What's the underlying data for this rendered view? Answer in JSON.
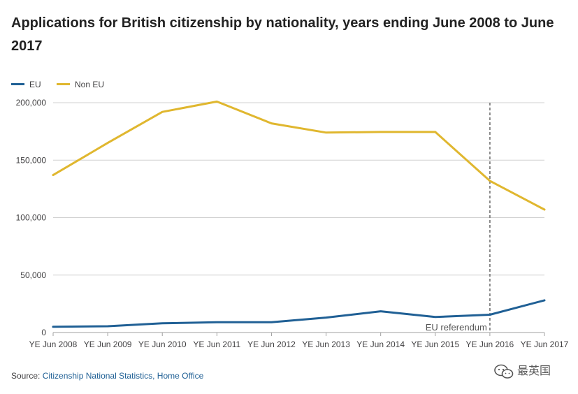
{
  "title": "Applications for British citizenship by nationality, years ending June 2008 to June 2017",
  "colors": {
    "eu": "#206095",
    "non_eu": "#e0b72f",
    "grid": "#d0d0d0",
    "axis_text": "#414042",
    "refline": "#888888"
  },
  "chart_data": {
    "type": "line",
    "title": "Applications for British citizenship by nationality, years ending June 2008 to June 2017",
    "xlabel": "",
    "ylabel": "",
    "categories": [
      "YE Jun 2008",
      "YE Jun 2009",
      "YE Jun 2010",
      "YE Jun 2011",
      "YE Jun 2012",
      "YE Jun 2013",
      "YE Jun 2014",
      "YE Jun 2015",
      "YE Jun 2016",
      "YE Jun 2017"
    ],
    "series": [
      {
        "name": "EU",
        "color": "#206095",
        "values": [
          5000,
          5500,
          8000,
          9000,
          9000,
          13000,
          18500,
          13500,
          15500,
          28000
        ]
      },
      {
        "name": "Non EU",
        "color": "#e0b72f",
        "values": [
          137000,
          165000,
          192000,
          201000,
          182000,
          174000,
          174500,
          174500,
          132000,
          107000
        ]
      }
    ],
    "ylim": [
      0,
      200000
    ],
    "yticks": [
      0,
      50000,
      100000,
      150000,
      200000
    ],
    "ytick_labels": [
      "0",
      "50,000",
      "100,000",
      "150,000",
      "200,000"
    ],
    "grid": true,
    "legend": "top-left",
    "annotations": [
      {
        "category": "YE Jun 2016",
        "label": "EU referendum",
        "style": "dashed-vertical"
      }
    ]
  },
  "source": {
    "prefix": "Source: ",
    "link_text": "Citizenship National Statistics, Home Office"
  },
  "watermark": {
    "text": "最英国"
  }
}
